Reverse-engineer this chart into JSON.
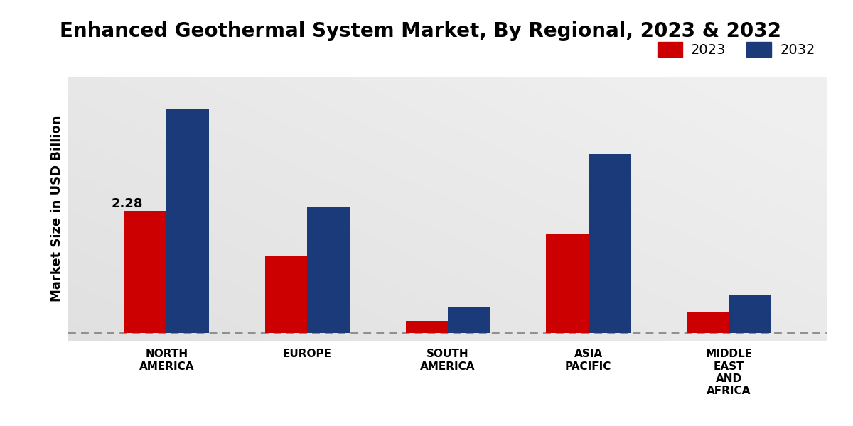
{
  "title": "Enhanced Geothermal System Market, By Regional, 2023 & 2032",
  "ylabel": "Market Size in USD Billion",
  "categories": [
    "NORTH\nAMERICA",
    "EUROPE",
    "SOUTH\nAMERICA",
    "ASIA\nPACIFIC",
    "MIDDLE\nEAST\nAND\nAFRICA"
  ],
  "values_2023": [
    2.28,
    1.45,
    0.22,
    1.85,
    0.38
  ],
  "values_2032": [
    4.2,
    2.35,
    0.48,
    3.35,
    0.72
  ],
  "color_2023": "#cc0000",
  "color_2032": "#1a3a7a",
  "bar_width": 0.3,
  "annotation_label": "2.28",
  "background_color_light": "#ebebeb",
  "background_color_dark": "#d0d0d0",
  "title_fontsize": 20,
  "legend_fontsize": 14,
  "ylabel_fontsize": 13,
  "tick_fontsize": 11,
  "annotation_fontsize": 13,
  "ylim": [
    -0.15,
    4.8
  ],
  "legend_labels": [
    "2023",
    "2032"
  ],
  "bottom_bar_color": "#c0000a",
  "bottom_bar_height": 12
}
